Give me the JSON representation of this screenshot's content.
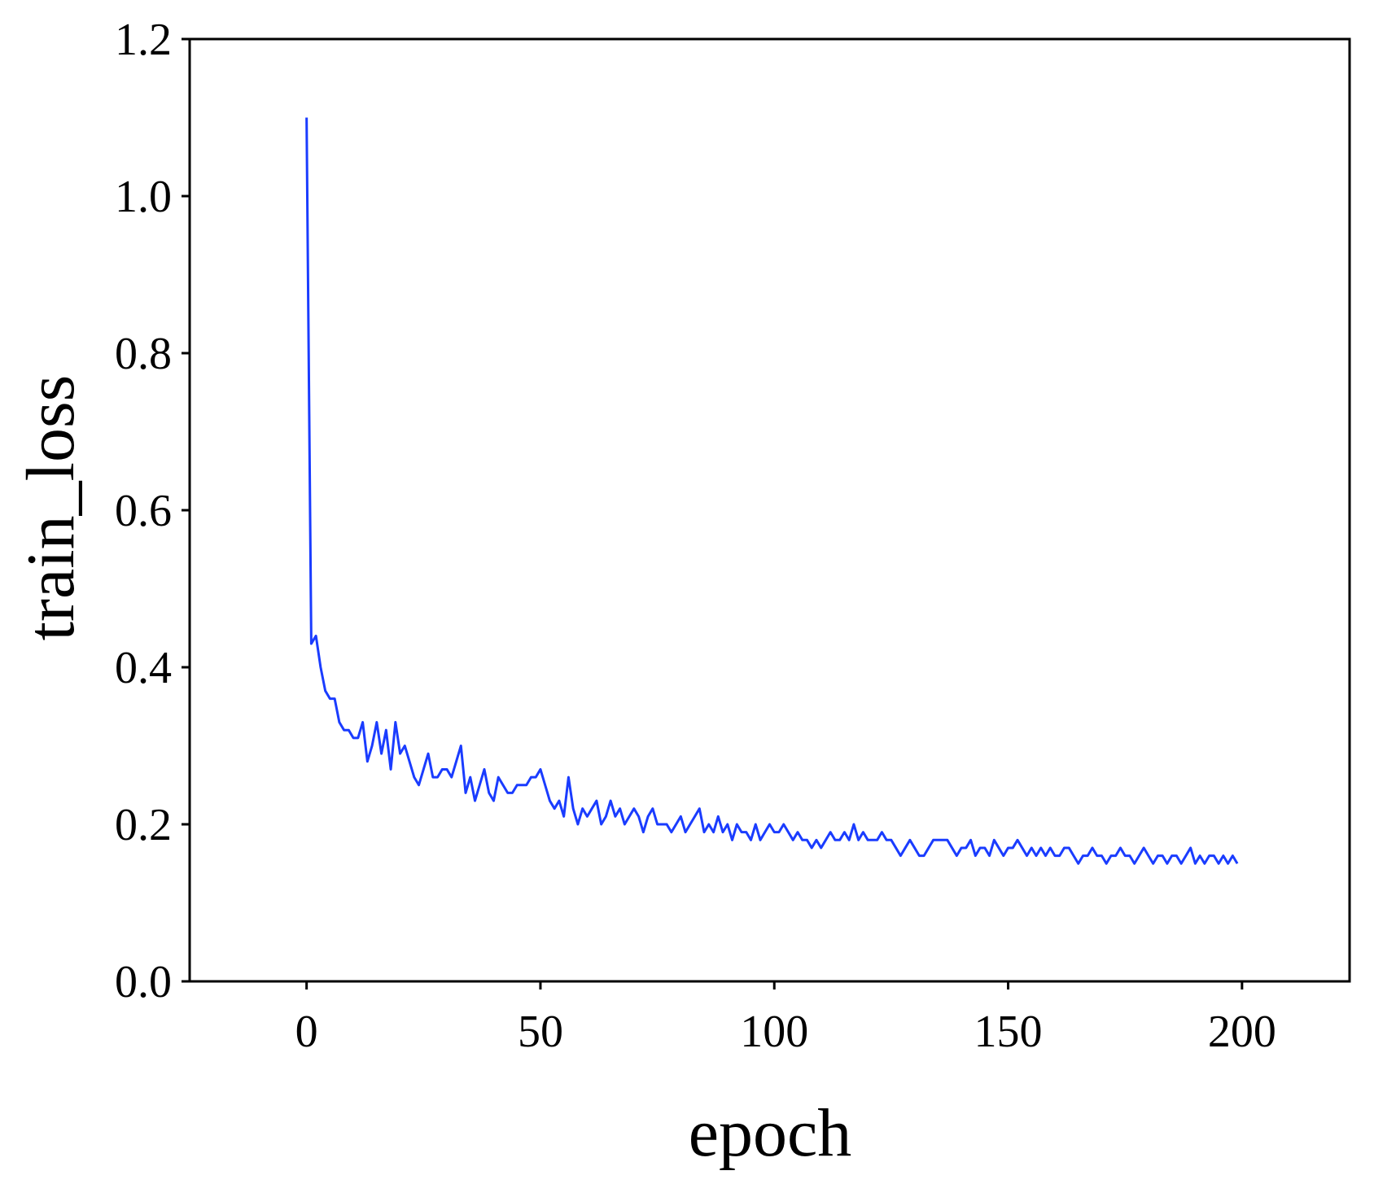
{
  "chart_data": {
    "type": "line",
    "x_label": "epoch",
    "y_label": "train_loss",
    "x": [
      0,
      1,
      2,
      3,
      4,
      5,
      6,
      7,
      8,
      9,
      10,
      11,
      12,
      13,
      14,
      15,
      16,
      17,
      18,
      19,
      20,
      21,
      22,
      23,
      24,
      25,
      26,
      27,
      28,
      29,
      30,
      31,
      32,
      33,
      34,
      35,
      36,
      37,
      38,
      39,
      40,
      41,
      42,
      43,
      44,
      45,
      46,
      47,
      48,
      49,
      50,
      51,
      52,
      53,
      54,
      55,
      56,
      57,
      58,
      59,
      60,
      61,
      62,
      63,
      64,
      65,
      66,
      67,
      68,
      69,
      70,
      71,
      72,
      73,
      74,
      75,
      76,
      77,
      78,
      79,
      80,
      81,
      82,
      83,
      84,
      85,
      86,
      87,
      88,
      89,
      90,
      91,
      92,
      93,
      94,
      95,
      96,
      97,
      98,
      99,
      100,
      101,
      102,
      103,
      104,
      105,
      106,
      107,
      108,
      109,
      110,
      111,
      112,
      113,
      114,
      115,
      116,
      117,
      118,
      119,
      120,
      121,
      122,
      123,
      124,
      125,
      126,
      127,
      128,
      129,
      130,
      131,
      132,
      133,
      134,
      135,
      136,
      137,
      138,
      139,
      140,
      141,
      142,
      143,
      144,
      145,
      146,
      147,
      148,
      149,
      150,
      151,
      152,
      153,
      154,
      155,
      156,
      157,
      158,
      159,
      160,
      161,
      162,
      163,
      164,
      165,
      166,
      167,
      168,
      169,
      170,
      171,
      172,
      173,
      174,
      175,
      176,
      177,
      178,
      179,
      180,
      181,
      182,
      183,
      184,
      185,
      186,
      187,
      188,
      189,
      190,
      191,
      192,
      193,
      194,
      195,
      196,
      197,
      198,
      199
    ],
    "series": [
      {
        "name": "train_loss",
        "color": "#1a3cff",
        "values": [
          1.1,
          0.43,
          0.44,
          0.4,
          0.37,
          0.36,
          0.36,
          0.33,
          0.32,
          0.32,
          0.31,
          0.31,
          0.33,
          0.28,
          0.3,
          0.33,
          0.29,
          0.32,
          0.27,
          0.33,
          0.29,
          0.3,
          0.28,
          0.26,
          0.25,
          0.27,
          0.29,
          0.26,
          0.26,
          0.27,
          0.27,
          0.26,
          0.28,
          0.3,
          0.24,
          0.26,
          0.23,
          0.25,
          0.27,
          0.24,
          0.23,
          0.26,
          0.25,
          0.24,
          0.24,
          0.25,
          0.25,
          0.25,
          0.26,
          0.26,
          0.27,
          0.25,
          0.23,
          0.22,
          0.23,
          0.21,
          0.26,
          0.22,
          0.2,
          0.22,
          0.21,
          0.22,
          0.23,
          0.2,
          0.21,
          0.23,
          0.21,
          0.22,
          0.2,
          0.21,
          0.22,
          0.21,
          0.19,
          0.21,
          0.22,
          0.2,
          0.2,
          0.2,
          0.19,
          0.2,
          0.21,
          0.19,
          0.2,
          0.21,
          0.22,
          0.19,
          0.2,
          0.19,
          0.21,
          0.19,
          0.2,
          0.18,
          0.2,
          0.19,
          0.19,
          0.18,
          0.2,
          0.18,
          0.19,
          0.2,
          0.19,
          0.19,
          0.2,
          0.19,
          0.18,
          0.19,
          0.18,
          0.18,
          0.17,
          0.18,
          0.17,
          0.18,
          0.19,
          0.18,
          0.18,
          0.19,
          0.18,
          0.2,
          0.18,
          0.19,
          0.18,
          0.18,
          0.18,
          0.19,
          0.18,
          0.18,
          0.17,
          0.16,
          0.17,
          0.18,
          0.17,
          0.16,
          0.16,
          0.17,
          0.18,
          0.18,
          0.18,
          0.18,
          0.17,
          0.16,
          0.17,
          0.17,
          0.18,
          0.16,
          0.17,
          0.17,
          0.16,
          0.18,
          0.17,
          0.16,
          0.17,
          0.17,
          0.18,
          0.17,
          0.16,
          0.17,
          0.16,
          0.17,
          0.16,
          0.17,
          0.16,
          0.16,
          0.17,
          0.17,
          0.16,
          0.15,
          0.16,
          0.16,
          0.17,
          0.16,
          0.16,
          0.15,
          0.16,
          0.16,
          0.17,
          0.16,
          0.16,
          0.15,
          0.16,
          0.17,
          0.16,
          0.15,
          0.16,
          0.16,
          0.15,
          0.16,
          0.16,
          0.15,
          0.16,
          0.17,
          0.15,
          0.16,
          0.15,
          0.16,
          0.16,
          0.15,
          0.16,
          0.15,
          0.16,
          0.15
        ]
      }
    ],
    "xlim": [
      -25,
      223
    ],
    "xticks": [
      0,
      50,
      100,
      150,
      200
    ],
    "ylim": [
      0,
      1.2
    ],
    "yticks": [
      {
        "value": 0,
        "label": "0.0"
      },
      0.2,
      0.4,
      0.6,
      0.8,
      {
        "value": 1,
        "label": "1.0"
      },
      1.2
    ],
    "grid": false
  }
}
